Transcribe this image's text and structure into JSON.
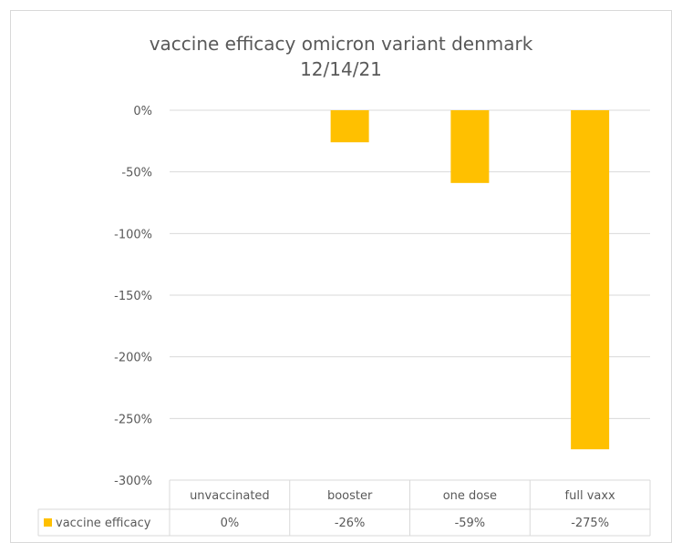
{
  "chart_data": {
    "type": "bar",
    "title_lines": [
      "vaccine efficacy omicron variant denmark",
      "12/14/21"
    ],
    "categories": [
      "unvaccinated",
      "booster",
      "one dose",
      "full vaxx"
    ],
    "series": [
      {
        "name": "vaccine efficacy",
        "values": [
          0,
          -26,
          -59,
          -275
        ],
        "labels": [
          "0%",
          "-26%",
          "-59%",
          "-275%"
        ],
        "color": "#FFC000"
      }
    ],
    "ylim": [
      -300,
      0
    ],
    "yticks": [
      0,
      -50,
      -100,
      -150,
      -200,
      -250,
      -300
    ],
    "ytick_labels": [
      "0%",
      "-50%",
      "-100%",
      "-150%",
      "-200%",
      "-250%",
      "-300%"
    ],
    "grid": true,
    "legend": "data-table"
  }
}
